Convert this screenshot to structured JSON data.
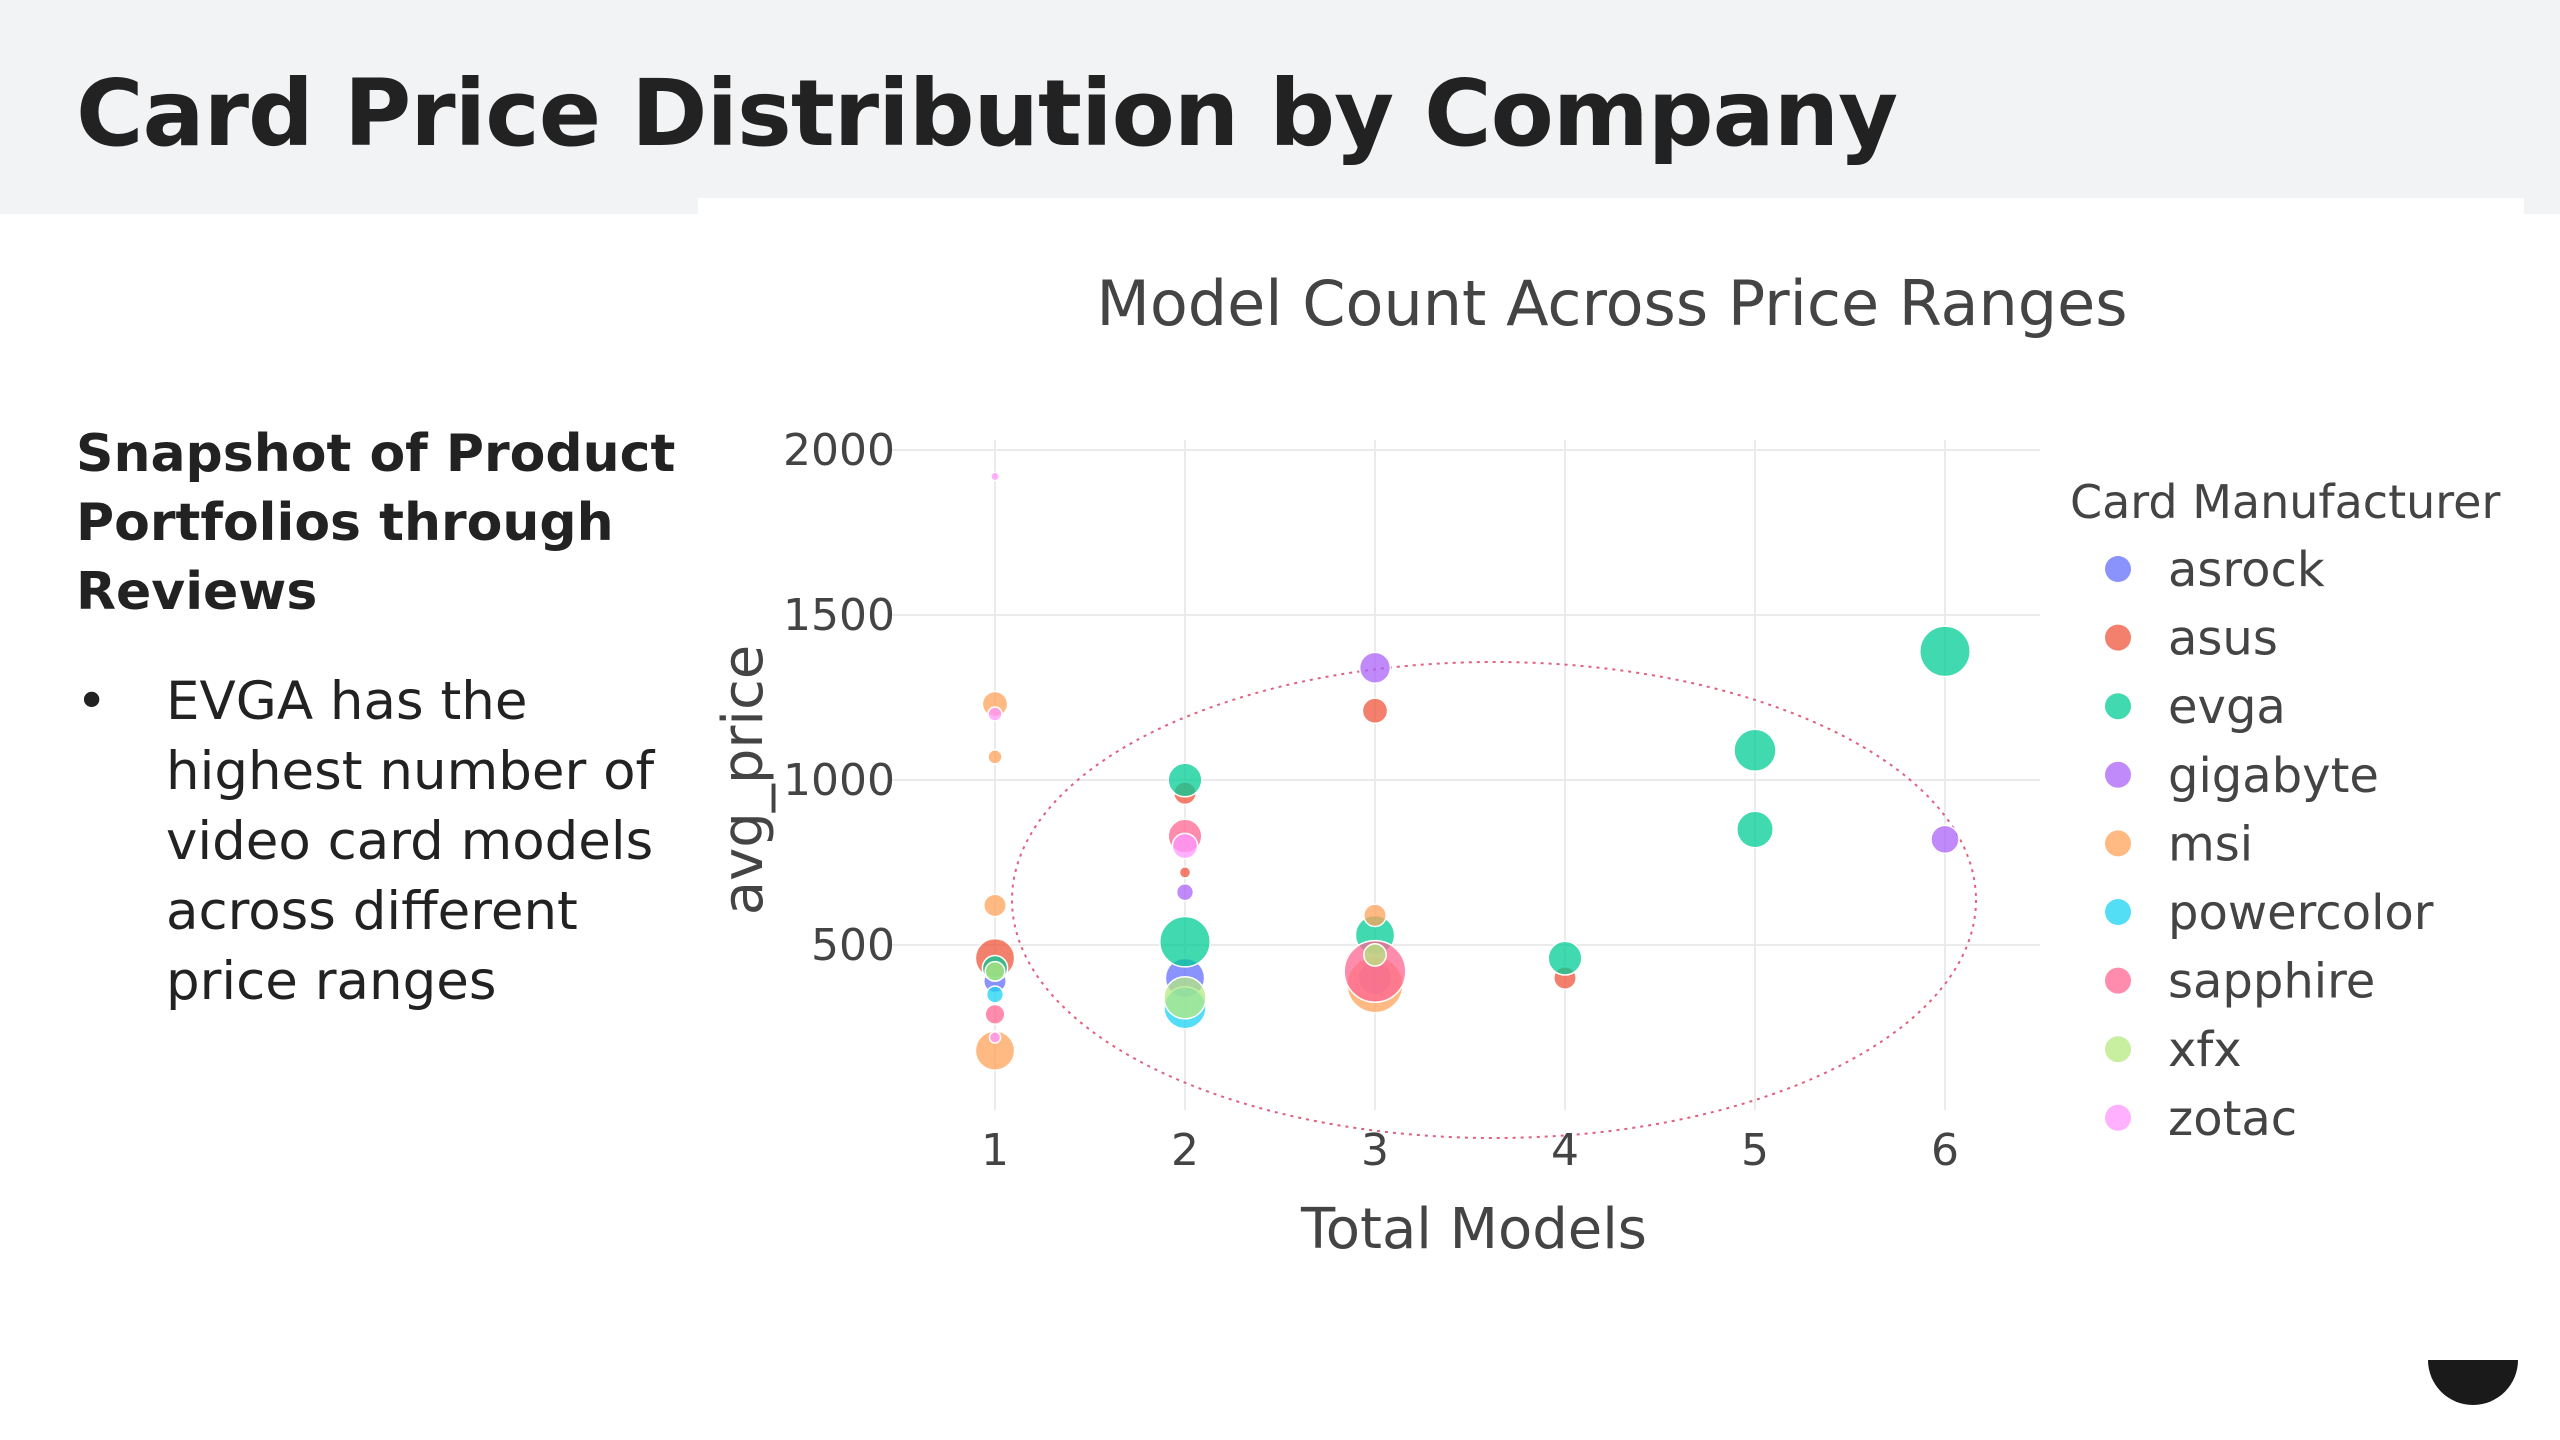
{
  "page": {
    "title": "Card Price Distribution by Company",
    "left_heading": "Snapshot of Product Portfolios through Reviews",
    "bullets": [
      "EVGA has the highest number of video card models across different price ranges"
    ]
  },
  "chart_data": {
    "type": "scatter",
    "title": "Model Count Across Price Ranges",
    "xlabel": "Total Models",
    "ylabel": "avg_price",
    "xlim": [
      0.5,
      6.5
    ],
    "ylim": [
      0,
      2000
    ],
    "xticks": [
      "1",
      "2",
      "3",
      "4",
      "5",
      "6"
    ],
    "yticks": [
      "500",
      "1000",
      "1500",
      "2000"
    ],
    "grid": true,
    "legend": {
      "title": "Card Manufacturer",
      "position": "right"
    },
    "annotation": "dotted ellipse highlighting models with 2-6 total models",
    "series": [
      {
        "name": "asrock",
        "color": "#636efa",
        "points": [
          {
            "x": 1,
            "y": 390,
            "size": 8
          },
          {
            "x": 2,
            "y": 400,
            "size": 14
          },
          {
            "x": 3,
            "y": 400,
            "size": 12
          }
        ]
      },
      {
        "name": "asus",
        "color": "#ef553b",
        "points": [
          {
            "x": 1,
            "y": 460,
            "size": 14
          },
          {
            "x": 2,
            "y": 960,
            "size": 8
          },
          {
            "x": 2,
            "y": 720,
            "size": 4
          },
          {
            "x": 3,
            "y": 1210,
            "size": 9
          },
          {
            "x": 4,
            "y": 400,
            "size": 8
          }
        ]
      },
      {
        "name": "evga",
        "color": "#00cc96",
        "points": [
          {
            "x": 1,
            "y": 430,
            "size": 9
          },
          {
            "x": 2,
            "y": 1000,
            "size": 12
          },
          {
            "x": 2,
            "y": 510,
            "size": 18
          },
          {
            "x": 3,
            "y": 530,
            "size": 14
          },
          {
            "x": 4,
            "y": 460,
            "size": 12
          },
          {
            "x": 5,
            "y": 1090,
            "size": 15
          },
          {
            "x": 5,
            "y": 850,
            "size": 13
          },
          {
            "x": 6,
            "y": 1390,
            "size": 18
          }
        ]
      },
      {
        "name": "gigabyte",
        "color": "#ab63fa",
        "points": [
          {
            "x": 2,
            "y": 660,
            "size": 6
          },
          {
            "x": 3,
            "y": 1340,
            "size": 11
          },
          {
            "x": 6,
            "y": 820,
            "size": 10
          }
        ]
      },
      {
        "name": "msi",
        "color": "#ffa15a",
        "points": [
          {
            "x": 1,
            "y": 1230,
            "size": 9
          },
          {
            "x": 1,
            "y": 1070,
            "size": 5
          },
          {
            "x": 1,
            "y": 620,
            "size": 8
          },
          {
            "x": 1,
            "y": 180,
            "size": 14
          },
          {
            "x": 3,
            "y": 590,
            "size": 8
          },
          {
            "x": 3,
            "y": 380,
            "size": 20
          }
        ]
      },
      {
        "name": "powercolor",
        "color": "#19d3f3",
        "points": [
          {
            "x": 1,
            "y": 350,
            "size": 6
          },
          {
            "x": 2,
            "y": 310,
            "size": 15
          }
        ]
      },
      {
        "name": "sapphire",
        "color": "#ff6692",
        "points": [
          {
            "x": 1,
            "y": 290,
            "size": 7
          },
          {
            "x": 2,
            "y": 830,
            "size": 12
          },
          {
            "x": 3,
            "y": 420,
            "size": 22
          }
        ]
      },
      {
        "name": "xfx",
        "color": "#b6e880",
        "points": [
          {
            "x": 1,
            "y": 420,
            "size": 7
          },
          {
            "x": 2,
            "y": 340,
            "size": 15
          },
          {
            "x": 3,
            "y": 470,
            "size": 8
          }
        ]
      },
      {
        "name": "zotac",
        "color": "#ff97ff",
        "points": [
          {
            "x": 1,
            "y": 1920,
            "size": 3
          },
          {
            "x": 1,
            "y": 1200,
            "size": 5
          },
          {
            "x": 1,
            "y": 220,
            "size": 4
          },
          {
            "x": 2,
            "y": 800,
            "size": 9
          }
        ]
      }
    ]
  }
}
